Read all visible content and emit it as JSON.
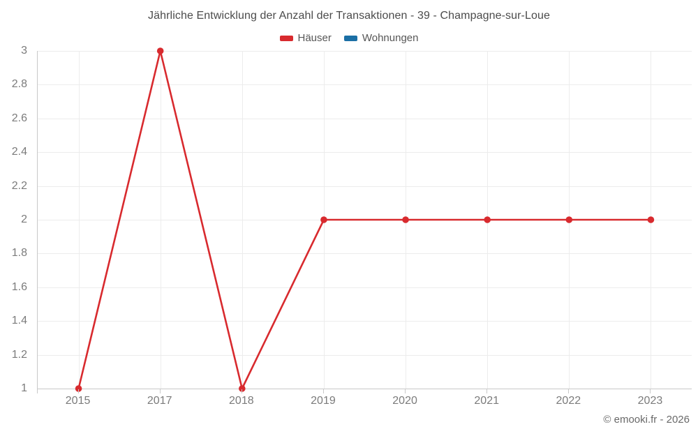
{
  "title": "Jährliche Entwicklung der Anzahl der Transaktionen - 39 - Champagne-sur-Loue",
  "legend": {
    "items": [
      {
        "label": "Häuser",
        "color": "#d82a2e"
      },
      {
        "label": "Wohnungen",
        "color": "#1b6fa5"
      }
    ]
  },
  "footer": {
    "copyright": "© emooki.fr - 2026"
  },
  "chart_data": {
    "type": "line",
    "title": "Jährliche Entwicklung der Anzahl der Transaktionen - 39 - Champagne-sur-Loue",
    "categories": [
      "2015",
      "2017",
      "2018",
      "2019",
      "2020",
      "2021",
      "2022",
      "2023"
    ],
    "series": [
      {
        "name": "Häuser",
        "color": "#d82a2e",
        "values": [
          1,
          3,
          1,
          2,
          2,
          2,
          2,
          2
        ]
      },
      {
        "name": "Wohnungen",
        "color": "#1b6fa5",
        "values": []
      }
    ],
    "xlabel": "",
    "ylabel": "",
    "ylim": [
      1,
      3
    ],
    "yticks": [
      1,
      1.2,
      1.4,
      1.6,
      1.8,
      2,
      2.2,
      2.4,
      2.6,
      2.8,
      3
    ],
    "ytick_labels": [
      "1",
      "1.2",
      "1.4",
      "1.6",
      "1.8",
      "2",
      "2.2",
      "2.4",
      "2.6",
      "2.8",
      "3"
    ],
    "grid": "both",
    "legend_position": "top",
    "marker_radius": 4.8,
    "line_width": 2.6
  }
}
